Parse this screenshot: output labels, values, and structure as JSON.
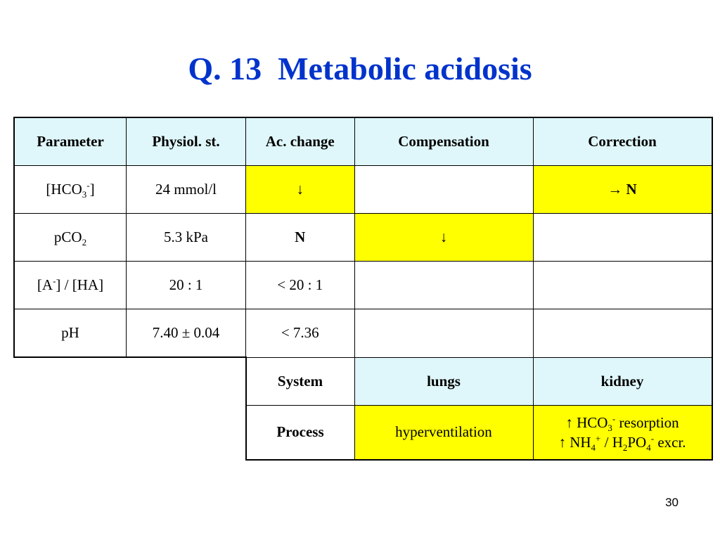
{
  "title": "Q. 13  Metabolic acidosis",
  "header": [
    "Parameter",
    "Physiol. st.",
    "Ac. change",
    "Compensation",
    "Correction"
  ],
  "rows": {
    "hco3": {
      "label_main": "[HCO",
      "label_sub": "3",
      "label_sup": "-",
      "label_end": "]",
      "physiol": "24 mmol/l",
      "change": "↓",
      "compensation": "",
      "correction": "→ N"
    },
    "pco2": {
      "label_main": "pCO",
      "label_sub": "2",
      "physiol": "5.3 kPa",
      "change": "N",
      "compensation": "↓",
      "correction": ""
    },
    "ratio": {
      "label_a": "[A",
      "label_sup": "-",
      "label_b": "] / [HA]",
      "physiol": "20 : 1",
      "change": "<  20 : 1",
      "compensation": "",
      "correction": ""
    },
    "ph": {
      "label": "pH",
      "physiol": "7.40 ± 0.04",
      "change": "<  7.36",
      "compensation": "",
      "correction": ""
    }
  },
  "system_row": {
    "label": "System",
    "compensation": "lungs",
    "correction": "kidney"
  },
  "process_row": {
    "label": "Process",
    "compensation": "hyperventilation",
    "corr_line1": {
      "arrow": "↑",
      "main": "HCO",
      "sub": "3",
      "sup": "-",
      "end": " resorption"
    },
    "corr_line2": {
      "arrow": "↑",
      "main": "NH",
      "sub": "4",
      "sup": "+",
      "mid": " / H",
      "sub2": "2",
      "mid2": "PO",
      "sub3": "4",
      "sup3": "-",
      "end": " excr."
    }
  },
  "page_number": "30",
  "colors": {
    "title": "#0033cc",
    "header_bg": "#dff7fb",
    "highlight": "#ffff00"
  }
}
